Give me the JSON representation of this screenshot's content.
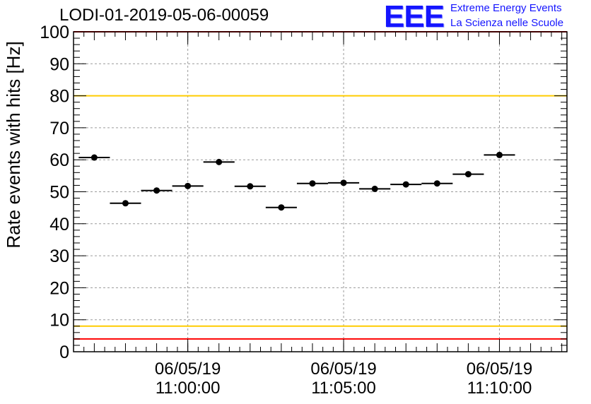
{
  "header": {
    "run_title": "LODI-01-2019-05-06-00059",
    "logo_text": "EEE",
    "logo_line1": "Extreme Energy Events",
    "logo_line2": "La Scienza nelle Scuole"
  },
  "chart_data": {
    "type": "scatter",
    "title": "LODI-01-2019-05-06-00059",
    "xlabel": "",
    "ylabel": "Rate events with hits [Hz]",
    "ylim": [
      0,
      100
    ],
    "xlim": [
      "2019-05-06 10:56:20",
      "2019-05-06 11:12:10"
    ],
    "y_ticks": [
      0,
      10,
      20,
      30,
      40,
      50,
      60,
      70,
      80,
      90,
      100
    ],
    "x_ticks": [
      {
        "date": "06/05/19",
        "time": "11:00:00"
      },
      {
        "date": "06/05/19",
        "time": "11:05:00"
      },
      {
        "date": "06/05/19",
        "time": "11:10:00"
      }
    ],
    "grid": true,
    "markers": "points with horizontal bin-width bars",
    "bin_width_seconds": 60,
    "series": [
      {
        "x": [
          "10:57:00",
          "10:58:00",
          "10:59:00",
          "11:00:00",
          "11:01:00",
          "11:02:00",
          "11:03:00",
          "11:04:00",
          "11:05:00",
          "11:06:00",
          "11:07:00",
          "11:08:00",
          "11:09:00",
          "11:10:00"
        ],
        "values": [
          60.7,
          46.4,
          50.4,
          51.8,
          59.3,
          51.7,
          45.1,
          52.6,
          52.8,
          50.9,
          52.3,
          52.6,
          55.5,
          61.5
        ]
      }
    ],
    "reference_lines": [
      {
        "y": 80,
        "color": "#ffcc00"
      },
      {
        "y": 8,
        "color": "#ffcc00"
      },
      {
        "y": 4,
        "color": "#ff0000"
      },
      {
        "y": 100,
        "color": "#ff0000"
      }
    ],
    "colors": {
      "points": "#000000",
      "grid": "#9a9a9a",
      "yellow_line": "#ffcc00",
      "red_line": "#ff0000"
    }
  }
}
